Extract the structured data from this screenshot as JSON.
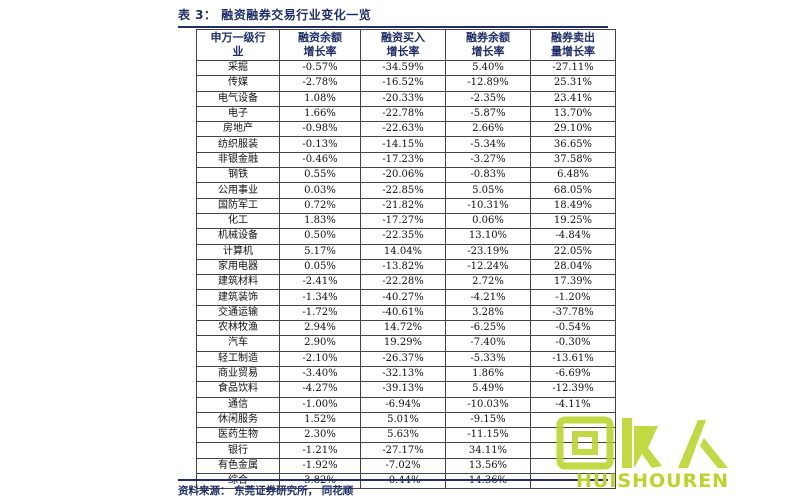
{
  "caption": "表 3： 融资融券交易行业变化一览",
  "headers": [
    [
      "申万一级行",
      "业"
    ],
    [
      "融资余额",
      "增长率"
    ],
    [
      "融资买入",
      "增长率"
    ],
    [
      "融券余额",
      "增长率"
    ],
    [
      "融券卖出",
      "量增长率"
    ]
  ],
  "rows": [
    [
      "采掘",
      "-0.57%",
      "-34.59%",
      "5.40%",
      "-27.11%"
    ],
    [
      "传媒",
      "-2.78%",
      "-16.52%",
      "-12.89%",
      "25.31%"
    ],
    [
      "电气设备",
      "1.08%",
      "-20.33%",
      "-2.35%",
      "23.41%"
    ],
    [
      "电子",
      "1.66%",
      "-22.78%",
      "-5.87%",
      "13.70%"
    ],
    [
      "房地产",
      "-0.98%",
      "-22.63%",
      "2.66%",
      "29.10%"
    ],
    [
      "纺织服装",
      "-0.13%",
      "-14.15%",
      "-5.34%",
      "36.65%"
    ],
    [
      "非银金融",
      "-0.46%",
      "-17.23%",
      "-3.27%",
      "37.58%"
    ],
    [
      "钢铁",
      "0.55%",
      "-20.06%",
      "-0.83%",
      "6.48%"
    ],
    [
      "公用事业",
      "0.03%",
      "-22.85%",
      "5.05%",
      "68.05%"
    ],
    [
      "国防军工",
      "0.72%",
      "-21.82%",
      "-10.31%",
      "18.49%"
    ],
    [
      "化工",
      "1.83%",
      "-17.27%",
      "0.06%",
      "19.25%"
    ],
    [
      "机械设备",
      "0.50%",
      "-22.35%",
      "13.10%",
      "-4.84%"
    ],
    [
      "计算机",
      "5.17%",
      "14.04%",
      "-23.19%",
      "22.05%"
    ],
    [
      "家用电器",
      "0.05%",
      "-13.82%",
      "-12.24%",
      "28.04%"
    ],
    [
      "建筑材料",
      "-2.41%",
      "-22.28%",
      "2.72%",
      "17.39%"
    ],
    [
      "建筑装饰",
      "-1.34%",
      "-40.27%",
      "-4.21%",
      "-1.20%"
    ],
    [
      "交通运输",
      "-1.72%",
      "-40.61%",
      "3.28%",
      "-37.78%"
    ],
    [
      "农林牧渔",
      "2.94%",
      "14.72%",
      "-6.25%",
      "-0.54%"
    ],
    [
      "汽车",
      "2.90%",
      "19.29%",
      "-7.40%",
      "-0.30%"
    ],
    [
      "轻工制造",
      "-2.10%",
      "-26.37%",
      "-5.33%",
      "-13.61%"
    ],
    [
      "商业贸易",
      "-3.40%",
      "-32.13%",
      "1.86%",
      "-6.69%"
    ],
    [
      "食品饮料",
      "-4.27%",
      "-39.13%",
      "5.49%",
      "-12.39%"
    ],
    [
      "通信",
      "-1.00%",
      "-6.94%",
      "-10.03%",
      "-4.11%"
    ],
    [
      "休闲服务",
      "1.52%",
      "5.01%",
      "-9.15%",
      ""
    ],
    [
      "医药生物",
      "2.30%",
      "5.63%",
      "-11.15%",
      ""
    ],
    [
      "银行",
      "-1.21%",
      "-27.17%",
      "34.11%",
      ""
    ],
    [
      "有色金属",
      "-1.92%",
      "-7.02%",
      "13.56%",
      ""
    ],
    [
      "综合",
      "3.82%",
      "-0.44%",
      "14.36%",
      ""
    ]
  ],
  "source": "资料来源： 东莞证券研究所， 同花顺",
  "watermark": {
    "text": "HUISHOUREN",
    "color": "#b9d52a"
  }
}
